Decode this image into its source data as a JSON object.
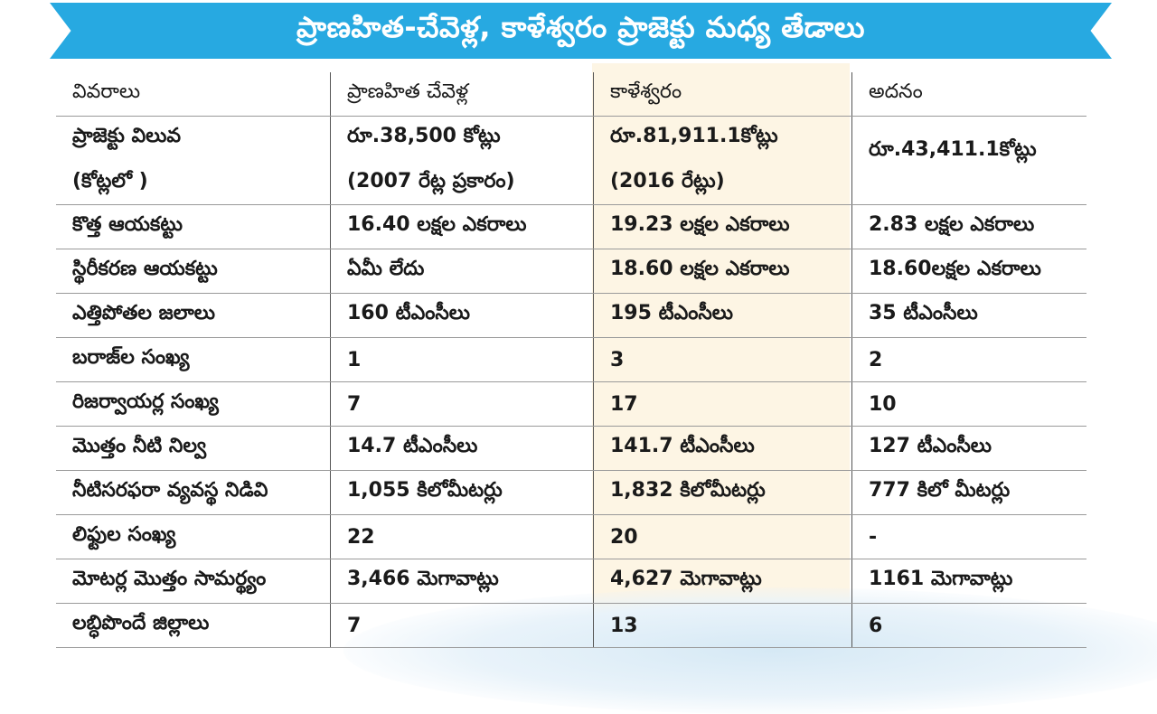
{
  "title": "ప్రాణహిత-చేవెళ్ల, కాళేశ్వరం ప్రాజెక్టు మధ్య తేడాలు",
  "colors": {
    "banner": "#27a9e1",
    "highlight_column": "#fdf5e4"
  },
  "table": {
    "headers": [
      "వివరాలు",
      "ప్రాణహిత చేవెళ్ల",
      "కాళేశ్వరం",
      "అదనం"
    ],
    "rows": [
      {
        "label": [
          "ప్రాజెక్టు విలువ",
          "(కోట్లలో )"
        ],
        "pc": [
          "రూ.38,500 కోట్లు",
          "(2007 రేట్ల ప్రకారం)"
        ],
        "kal": [
          "రూ.81,911.1కోట్లు",
          "(2016 రేట్లు)"
        ],
        "diff": [
          "రూ.43,411.1కోట్లు",
          ""
        ]
      },
      {
        "label": [
          "కొత్త ఆయకట్టు"
        ],
        "pc": [
          "16.40 లక్షల ఎకరాలు"
        ],
        "kal": [
          "19.23 లక్షల ఎకరాలు"
        ],
        "diff": [
          "2.83 లక్షల ఎకరాలు"
        ]
      },
      {
        "label": [
          "స్థిరీకరణ ఆయకట్టు"
        ],
        "pc": [
          "ఏమీ లేదు"
        ],
        "kal": [
          "18.60 లక్షల ఎకరాలు"
        ],
        "diff": [
          "18.60లక్షల ఎకరాలు"
        ]
      },
      {
        "label": [
          "ఎత్తిపోతల జలాలు"
        ],
        "pc": [
          "160 టీఎంసీలు"
        ],
        "kal": [
          "195 టీఎంసీలు"
        ],
        "diff": [
          "35 టీఎంసీలు"
        ]
      },
      {
        "label": [
          "బరాజ్‌ల సంఖ్య"
        ],
        "pc": [
          "1"
        ],
        "kal": [
          "3"
        ],
        "diff": [
          "2"
        ]
      },
      {
        "label": [
          "రిజర్వాయర్ల సంఖ్య"
        ],
        "pc": [
          "7"
        ],
        "kal": [
          "17"
        ],
        "diff": [
          "10"
        ]
      },
      {
        "label": [
          "మొత్తం నీటి నిల్వ"
        ],
        "pc": [
          "14.7 టీఎంసీలు"
        ],
        "kal": [
          "141.7 టీఎంసీలు"
        ],
        "diff": [
          "127 టీఎంసీలు"
        ]
      },
      {
        "label": [
          "నీటిసరఫరా వ్యవస్థ నిడివి"
        ],
        "pc": [
          "1,055 కిలోమీటర్లు"
        ],
        "kal": [
          "1,832 కిలోమీటర్లు"
        ],
        "diff": [
          "777 కిలో మీటర్లు"
        ]
      },
      {
        "label": [
          "లిఫ్టుల సంఖ్య"
        ],
        "pc": [
          "22"
        ],
        "kal": [
          "20"
        ],
        "diff": [
          "-"
        ]
      },
      {
        "label": [
          "మోటర్ల మొత్తం సామర్థ్యం"
        ],
        "pc": [
          "3,466 మెగావాట్లు"
        ],
        "kal": [
          "4,627 మెగావాట్లు"
        ],
        "diff": [
          "1161 మెగావాట్లు"
        ]
      },
      {
        "label": [
          "లబ్ధిపొందే జిల్లాలు"
        ],
        "pc": [
          "7"
        ],
        "kal": [
          "13"
        ],
        "diff": [
          "6"
        ]
      }
    ]
  }
}
